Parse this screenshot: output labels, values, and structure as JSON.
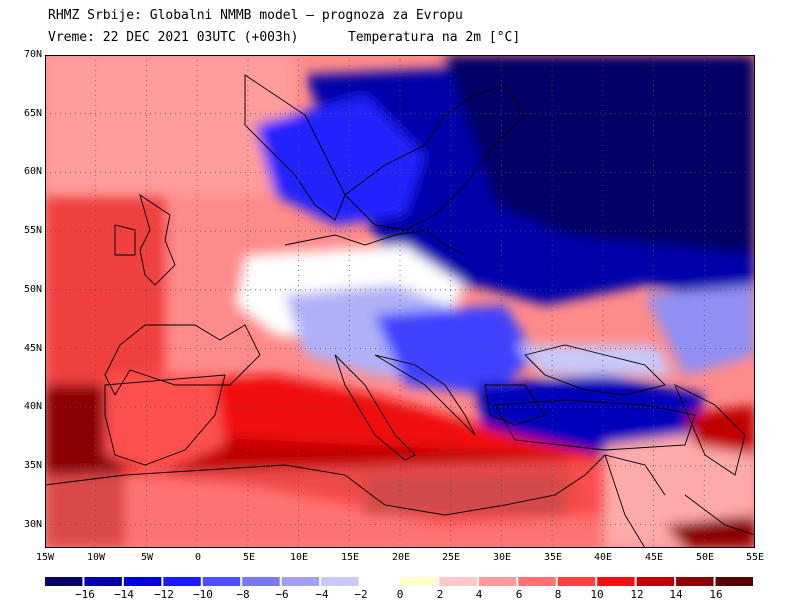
{
  "header": {
    "line1": "RHMZ Srbije: Globalni NMMB model — prognoza za Evropu",
    "line2": "Vreme: 22 DEC 2021 03UTC (+003h)",
    "variable": "Temperatura na 2m [°C]"
  },
  "map": {
    "lon_range": [
      -15,
      55
    ],
    "lat_range": [
      28,
      70
    ],
    "lat_labels": [
      "70N",
      "65N",
      "60N",
      "55N",
      "50N",
      "45N",
      "40N",
      "35N",
      "30N"
    ],
    "lon_labels": [
      "15W",
      "10W",
      "5W",
      "0",
      "5E",
      "10E",
      "15E",
      "20E",
      "25E",
      "30E",
      "35E",
      "40E",
      "45E",
      "50E",
      "55E"
    ]
  },
  "colorbar": {
    "labels": [
      "−16",
      "−14",
      "−12",
      "−10",
      "−8",
      "−6",
      "−4",
      "−2",
      "0",
      "2",
      "4",
      "6",
      "8",
      "10",
      "12",
      "14",
      "16"
    ],
    "colors": [
      "#000066",
      "#0000aa",
      "#0000d8",
      "#1a1aff",
      "#4f4fff",
      "#7878f0",
      "#a0a0f5",
      "#c8c8fa",
      "#ffffff",
      "#ffffcc",
      "#ffc8c8",
      "#ff9a9a",
      "#ff7070",
      "#ff4040",
      "#f01010",
      "#c00000",
      "#8b0000",
      "#5a0000"
    ]
  }
}
